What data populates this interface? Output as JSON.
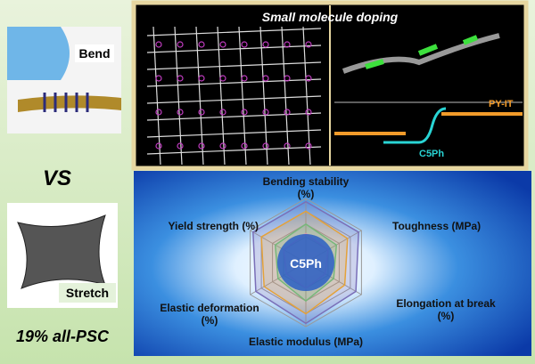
{
  "left": {
    "bend_label": "Bend",
    "vs": "VS",
    "stretch_label": "Stretch",
    "footer": "19% all-PSC"
  },
  "top_panel": {
    "title": "Small molecule doping",
    "acceptor": "PY-IT",
    "dopant": "C5Ph"
  },
  "radar": {
    "center_label": "C5Ph",
    "axes": [
      {
        "lines": [
          "Bending stability",
          "(%)"
        ]
      },
      {
        "lines": [
          "Toughness (MPa)"
        ]
      },
      {
        "lines": [
          "Elongation at break",
          "(%)"
        ]
      },
      {
        "lines": [
          "Elastic modulus (MPa)"
        ]
      },
      {
        "lines": [
          "Elastic deformation",
          "(%)"
        ]
      },
      {
        "lines": [
          "Yield strength (%)"
        ]
      }
    ]
  }
}
